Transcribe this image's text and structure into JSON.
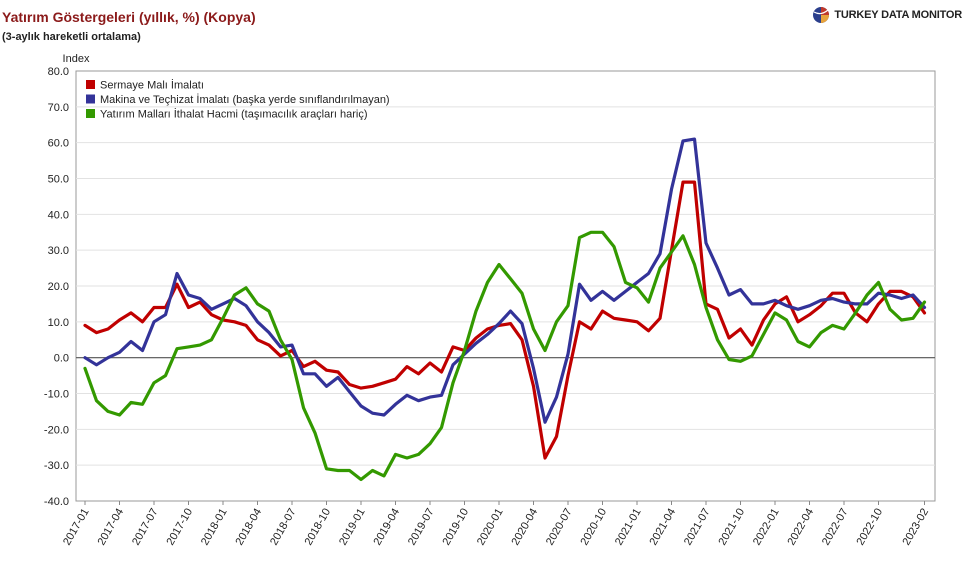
{
  "header": {
    "title": "Yatırım Göstergeleri (yıllık, %) (Kopya)",
    "subtitle": "(3-aylık hareketli ortalama)",
    "brand": "TURKEY DATA MONITOR"
  },
  "chart_data": {
    "type": "line",
    "ylabel": "Index",
    "ylim": [
      -40,
      80
    ],
    "ytick_step": 10,
    "yticks": [
      "-40.0",
      "-30.0",
      "-20.0",
      "-10.0",
      "0.0",
      "10.0",
      "20.0",
      "30.0",
      "40.0",
      "50.0",
      "60.0",
      "70.0",
      "80.0"
    ],
    "grid": true,
    "legend_position": "top-left",
    "x_start": "2017-01",
    "x_labels": [
      "2017-01",
      "2017-04",
      "2017-07",
      "2017-10",
      "2018-01",
      "2018-04",
      "2018-07",
      "2018-10",
      "2019-01",
      "2019-04",
      "2019-07",
      "2019-10",
      "2020-01",
      "2020-04",
      "2020-07",
      "2020-10",
      "2021-01",
      "2021-04",
      "2021-07",
      "2021-10",
      "2022-01",
      "2022-04",
      "2022-07",
      "2022-10",
      "2023-02"
    ],
    "x": [
      "2017-01",
      "2017-02",
      "2017-03",
      "2017-04",
      "2017-05",
      "2017-06",
      "2017-07",
      "2017-08",
      "2017-09",
      "2017-10",
      "2017-11",
      "2017-12",
      "2018-01",
      "2018-02",
      "2018-03",
      "2018-04",
      "2018-05",
      "2018-06",
      "2018-07",
      "2018-08",
      "2018-09",
      "2018-10",
      "2018-11",
      "2018-12",
      "2019-01",
      "2019-02",
      "2019-03",
      "2019-04",
      "2019-05",
      "2019-06",
      "2019-07",
      "2019-08",
      "2019-09",
      "2019-10",
      "2019-11",
      "2019-12",
      "2020-01",
      "2020-02",
      "2020-03",
      "2020-04",
      "2020-05",
      "2020-06",
      "2020-07",
      "2020-08",
      "2020-09",
      "2020-10",
      "2020-11",
      "2020-12",
      "2021-01",
      "2021-02",
      "2021-03",
      "2021-04",
      "2021-05",
      "2021-06",
      "2021-07",
      "2021-08",
      "2021-09",
      "2021-10",
      "2021-11",
      "2021-12",
      "2022-01",
      "2022-02",
      "2022-03",
      "2022-04",
      "2022-05",
      "2022-06",
      "2022-07",
      "2022-08",
      "2022-09",
      "2022-10",
      "2022-11",
      "2022-12",
      "2023-01",
      "2023-02"
    ],
    "series": [
      {
        "name": "Sermaye Malı İmalatı",
        "color": "#c00000",
        "values": [
          9,
          7,
          8,
          10.5,
          12.5,
          10,
          14,
          14,
          20.5,
          14,
          15.5,
          12,
          10.5,
          10,
          9,
          5,
          3.5,
          0.5,
          2,
          -2.5,
          -1,
          -3.5,
          -4,
          -7.5,
          -8.5,
          -8,
          -7,
          -6,
          -2.5,
          -4.5,
          -1.5,
          -4,
          3,
          2,
          5.5,
          8,
          9,
          9.5,
          5,
          -8,
          -28,
          -22,
          -5,
          10,
          8,
          13,
          11,
          10.5,
          10,
          7.5,
          11,
          30,
          49,
          49,
          15,
          13.5,
          5.5,
          8,
          3.5,
          10.5,
          15,
          17,
          10,
          12,
          14.5,
          18,
          18,
          12.5,
          10,
          15,
          18.5,
          18.5,
          17,
          12.5
        ]
      },
      {
        "name": "Makina ve Teçhizat İmalatı (başka yerde sınıflandırılmayan)",
        "color": "#333399",
        "values": [
          0,
          -2,
          0,
          1.5,
          4.5,
          2,
          10,
          12,
          23.5,
          17.5,
          16.5,
          13.5,
          15,
          16.5,
          14.5,
          10,
          7,
          3,
          3.5,
          -4.5,
          -4.5,
          -8,
          -5.5,
          -9.5,
          -13.5,
          -15.5,
          -16,
          -13,
          -10.5,
          -12,
          -11,
          -10.5,
          -2,
          1,
          4,
          6.5,
          9.5,
          13,
          9.5,
          -3,
          -18,
          -11,
          1,
          20.5,
          16,
          18.5,
          16,
          18.5,
          21,
          23.5,
          29,
          47,
          60.5,
          61,
          32,
          25,
          17.5,
          19,
          15,
          15,
          16,
          14.5,
          13.5,
          14.5,
          16,
          16.5,
          15.5,
          15,
          15,
          18,
          17.5,
          16.5,
          17.5,
          14
        ]
      },
      {
        "name": "Yatırım Malları İthalat Hacmi (taşımacılık araçları hariç)",
        "color": "#339900",
        "values": [
          -3,
          -12,
          -15,
          -16,
          -12.5,
          -13,
          -7,
          -5,
          2.5,
          3,
          3.5,
          5,
          11,
          17.5,
          19.5,
          15,
          13,
          5,
          -0.5,
          -14,
          -21,
          -31,
          -31.5,
          -31.5,
          -34,
          -31.5,
          -33,
          -27,
          -28,
          -27,
          -24,
          -19.5,
          -7,
          2,
          13,
          21,
          26,
          22,
          18,
          8,
          2,
          10,
          14.5,
          33.5,
          35,
          35,
          31,
          21,
          19.5,
          15.5,
          25,
          29.5,
          34,
          26,
          14,
          5,
          -0.5,
          -1,
          0.5,
          6.5,
          12.5,
          10.5,
          4.5,
          3,
          7,
          9,
          8,
          12.5,
          17.5,
          21,
          13.5,
          10.5,
          11,
          15.5
        ]
      }
    ]
  }
}
